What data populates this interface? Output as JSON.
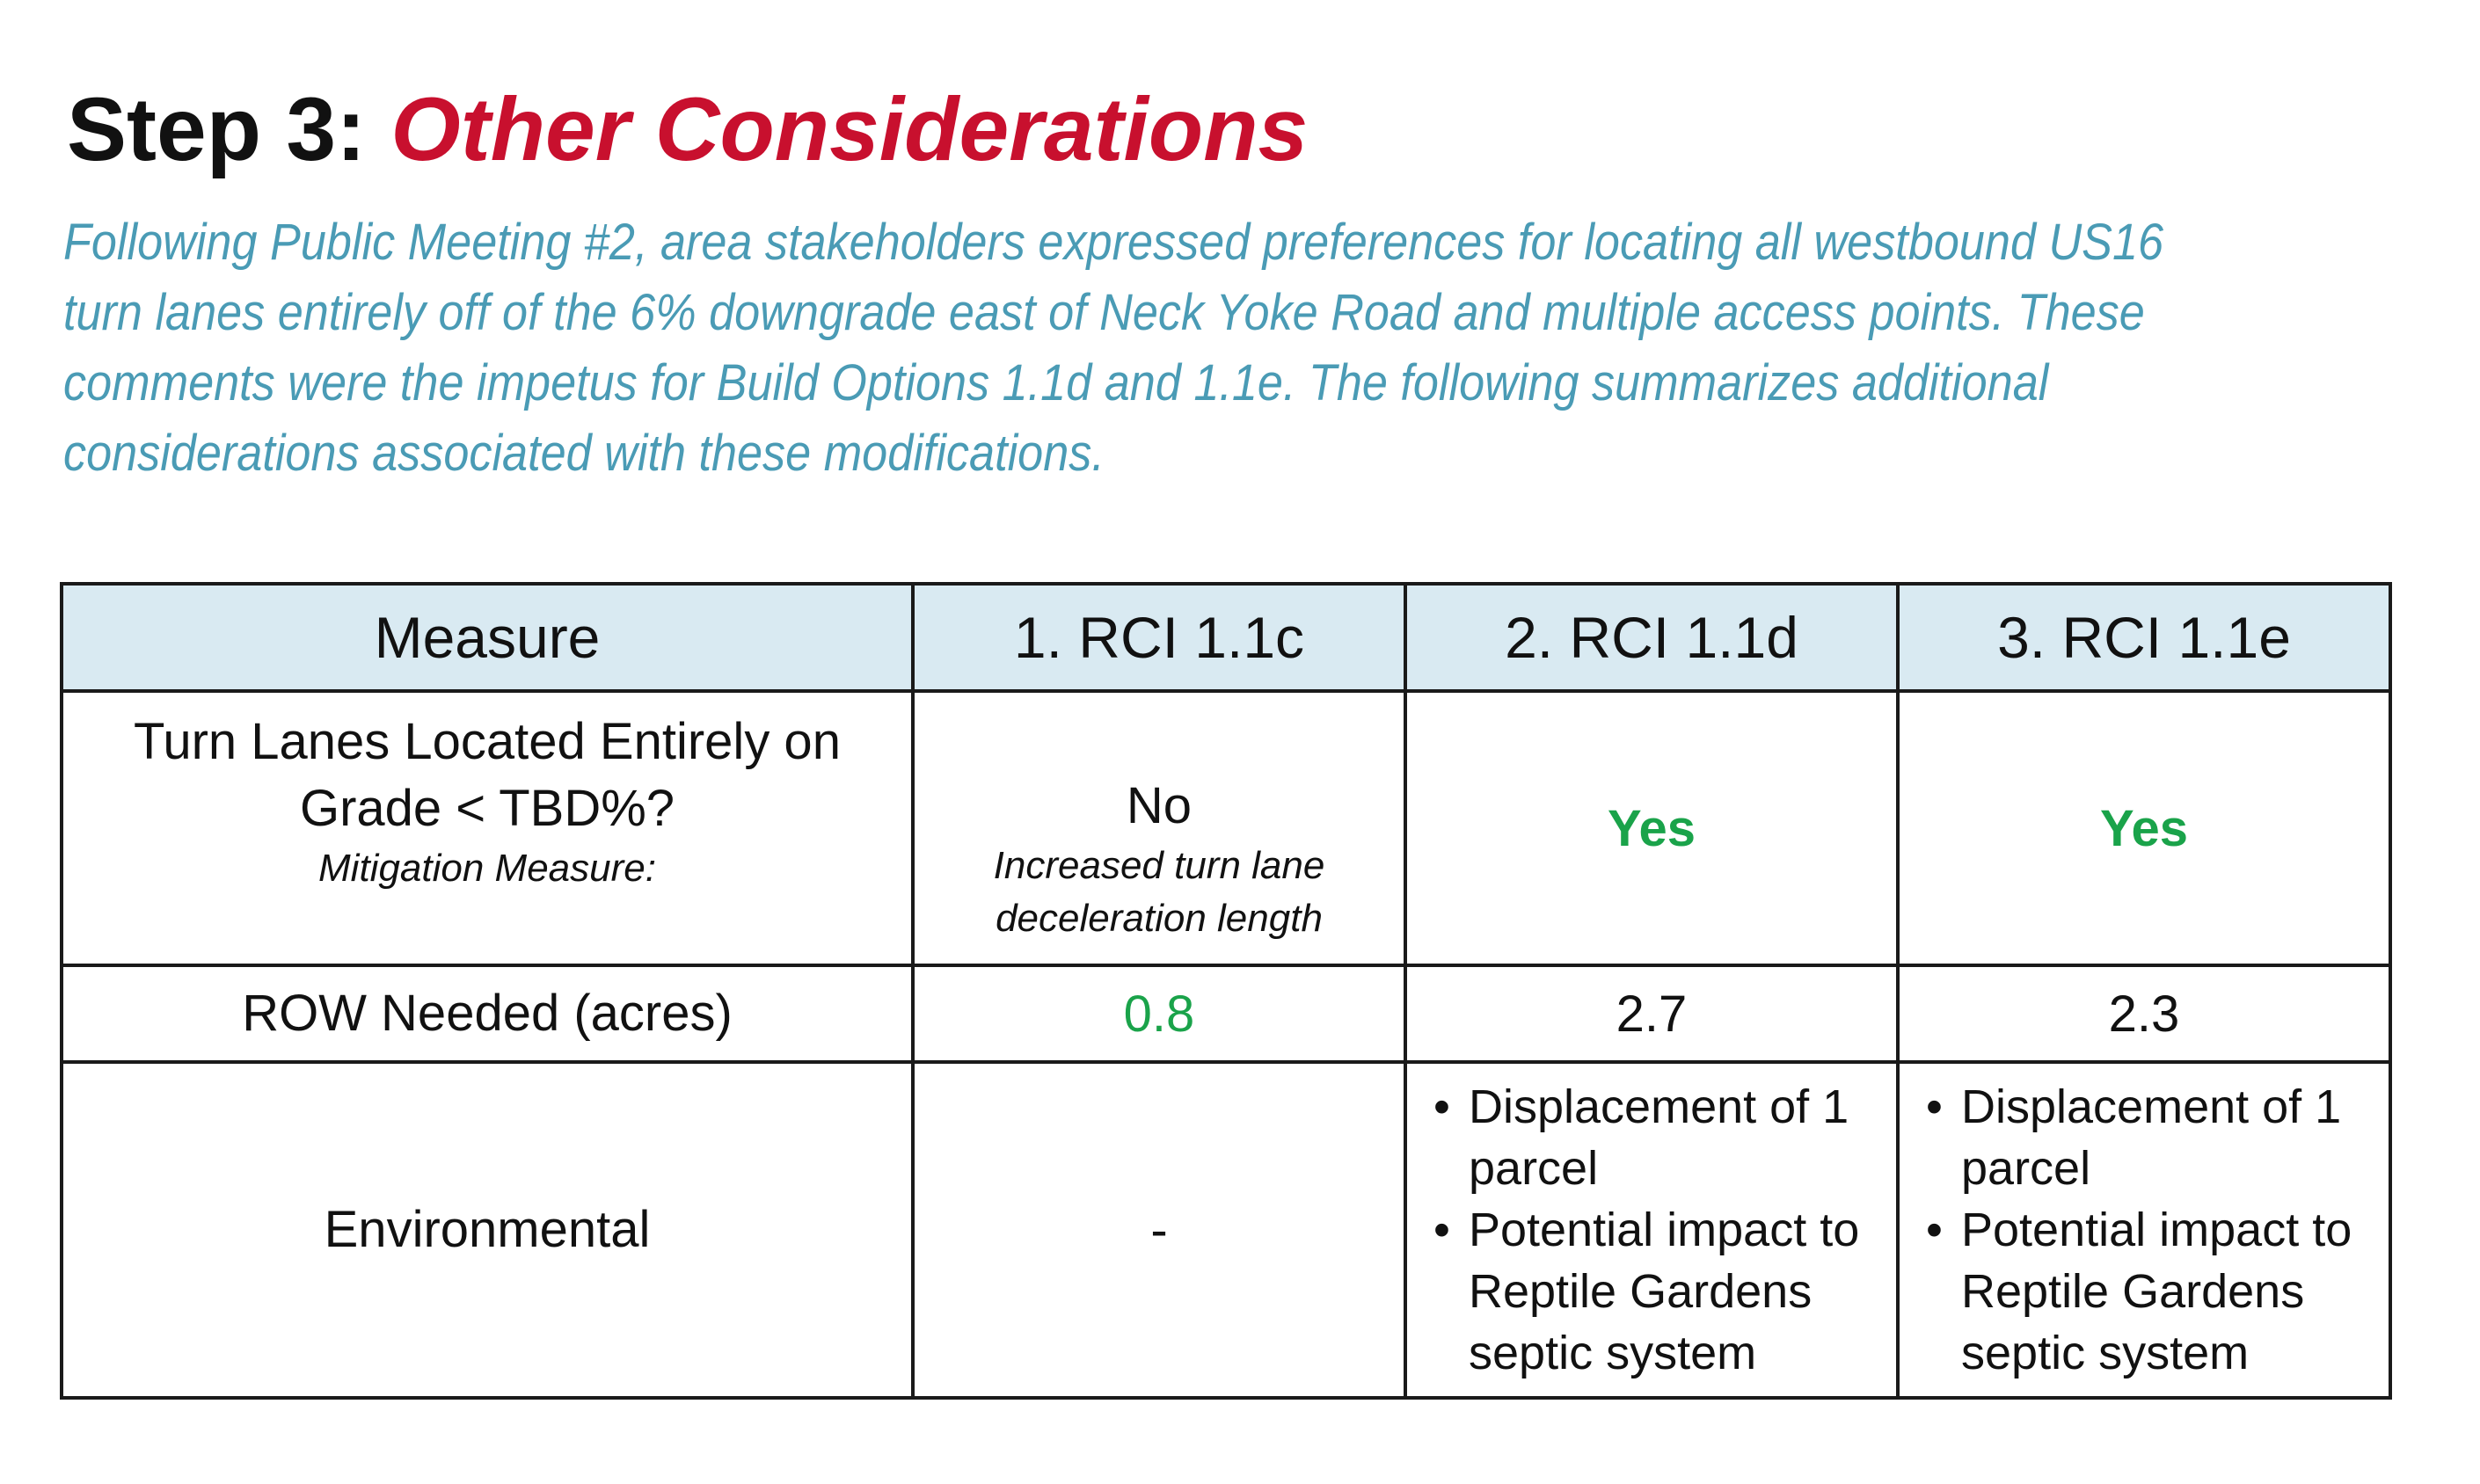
{
  "title": {
    "prefix": "Step 3:",
    "accent": "Other Considerations"
  },
  "intro": "Following Public Meeting #2, area stakeholders expressed preferences for locating all westbound US16 turn lanes entirely off of the 6% downgrade east of Neck Yoke Road and multiple access points.  These comments were the impetus for Build Options 1.1d and 1.1e.  The following summarizes additional considerations associated with these modifications.",
  "table": {
    "headers": [
      "Measure",
      "1. RCI 1.1c",
      "2. RCI 1.1d",
      "3. RCI 1.1e"
    ],
    "turn_lanes": {
      "label_line1": "Turn Lanes Located Entirely on",
      "label_line2": "Grade < TBD%?",
      "label_sub": "Mitigation Measure:",
      "rci_1c": "No",
      "rci_1c_sub_line1": "Increased turn lane",
      "rci_1c_sub_line2": "deceleration length",
      "rci_1d": "Yes",
      "rci_1e": "Yes"
    },
    "row_needed": {
      "label": "ROW Needed (acres)",
      "rci_1c": "0.8",
      "rci_1d": "2.7",
      "rci_1e": "2.3"
    },
    "environmental": {
      "label": "Environmental",
      "rci_1c": "-",
      "rci_1d": [
        "Displacement of 1 parcel",
        "Potential impact to Reptile Gardens septic system"
      ],
      "rci_1e": [
        "Displacement of 1 parcel",
        "Potential impact to Reptile Gardens septic system"
      ]
    }
  },
  "colors": {
    "title_accent": "#c8102e",
    "intro_text": "#4a9bb5",
    "header_bg": "#d9eaf2",
    "positive_green": "#1aa34a"
  }
}
